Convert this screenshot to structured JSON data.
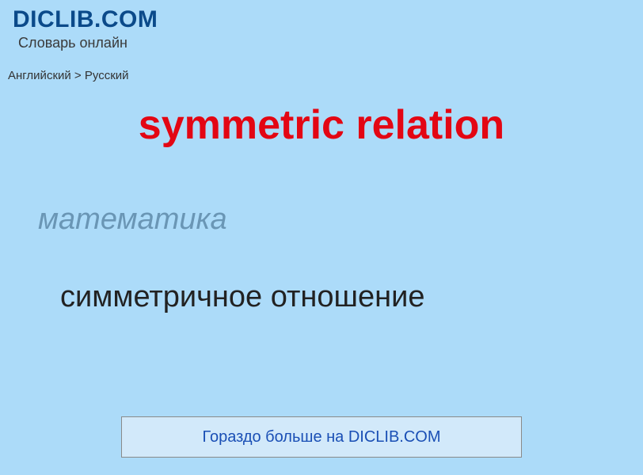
{
  "header": {
    "logo": "DICLIB.COM",
    "subtitle": "Словарь онлайн"
  },
  "breadcrumb": "Английский > Русский",
  "main_title": "symmetric relation",
  "category": "математика",
  "translation": "симметричное отношение",
  "more_link": "Гораздо больше на DICLIB.COM",
  "colors": {
    "background": "#acdbf9",
    "logo": "#0b4a8a",
    "title": "#e30613",
    "category": "#6a96b5",
    "translation": "#222222",
    "link": "#1a4fb5",
    "box_bg": "#d2e9fa",
    "box_border": "#8a8a8a"
  }
}
